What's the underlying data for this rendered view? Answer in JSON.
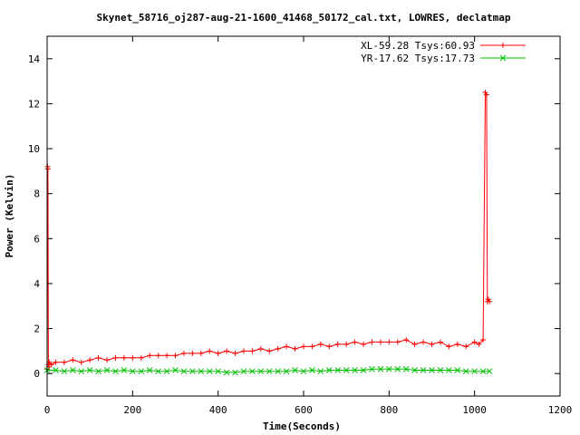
{
  "chart_data": {
    "type": "line",
    "title": "Skynet_58716_oj287-aug-21-1600_41468_50172_cal.txt, LOWRES, declatmap",
    "xlabel": "Time(Seconds)",
    "ylabel": "Power (Kelvin)",
    "xlim": [
      0,
      1200
    ],
    "ylim": [
      -1,
      15
    ],
    "xticks": [
      0,
      200,
      400,
      600,
      800,
      1000,
      1200
    ],
    "yticks": [
      0,
      2,
      4,
      6,
      8,
      10,
      12,
      14
    ],
    "grid": false,
    "legend_position": "top-right",
    "series": [
      {
        "name": "XL-59.28 Tsys:60.93",
        "color": "#ff0000",
        "marker": "plus",
        "x": [
          0,
          1,
          2,
          3,
          4,
          5,
          10,
          20,
          40,
          60,
          80,
          100,
          120,
          140,
          160,
          180,
          200,
          220,
          240,
          260,
          280,
          300,
          320,
          340,
          360,
          380,
          400,
          420,
          440,
          460,
          480,
          500,
          520,
          540,
          560,
          580,
          600,
          620,
          640,
          660,
          680,
          700,
          720,
          740,
          760,
          780,
          800,
          820,
          840,
          860,
          880,
          900,
          920,
          940,
          960,
          980,
          1000,
          1010,
          1020,
          1025,
          1028,
          1030,
          1032,
          1035
        ],
        "y": [
          0.2,
          9.2,
          9.1,
          0.4,
          0.3,
          0.5,
          0.4,
          0.5,
          0.5,
          0.6,
          0.5,
          0.6,
          0.7,
          0.6,
          0.7,
          0.7,
          0.7,
          0.7,
          0.8,
          0.8,
          0.8,
          0.8,
          0.9,
          0.9,
          0.9,
          1.0,
          0.9,
          1.0,
          0.9,
          1.0,
          1.0,
          1.1,
          1.0,
          1.1,
          1.2,
          1.1,
          1.2,
          1.2,
          1.3,
          1.2,
          1.3,
          1.3,
          1.4,
          1.3,
          1.4,
          1.4,
          1.4,
          1.4,
          1.5,
          1.3,
          1.4,
          1.3,
          1.4,
          1.2,
          1.3,
          1.2,
          1.4,
          1.3,
          1.5,
          12.5,
          12.4,
          3.2,
          3.3,
          3.2
        ]
      },
      {
        "name": "YR-17.62 Tsys:17.73",
        "color": "#00c000",
        "marker": "cross",
        "x": [
          0,
          20,
          40,
          60,
          80,
          100,
          120,
          140,
          160,
          180,
          200,
          220,
          240,
          260,
          280,
          300,
          320,
          340,
          360,
          380,
          400,
          420,
          440,
          460,
          480,
          500,
          520,
          540,
          560,
          580,
          600,
          620,
          640,
          660,
          680,
          700,
          720,
          740,
          760,
          780,
          800,
          820,
          840,
          860,
          880,
          900,
          920,
          940,
          960,
          980,
          1000,
          1020,
          1035
        ],
        "y": [
          0.15,
          0.15,
          0.1,
          0.15,
          0.1,
          0.15,
          0.1,
          0.15,
          0.1,
          0.15,
          0.1,
          0.1,
          0.15,
          0.1,
          0.1,
          0.15,
          0.1,
          0.1,
          0.1,
          0.1,
          0.1,
          0.05,
          0.05,
          0.1,
          0.1,
          0.1,
          0.1,
          0.1,
          0.1,
          0.15,
          0.1,
          0.15,
          0.1,
          0.15,
          0.15,
          0.15,
          0.15,
          0.15,
          0.2,
          0.2,
          0.2,
          0.2,
          0.2,
          0.15,
          0.15,
          0.15,
          0.15,
          0.15,
          0.15,
          0.1,
          0.1,
          0.1,
          0.1
        ]
      }
    ]
  }
}
